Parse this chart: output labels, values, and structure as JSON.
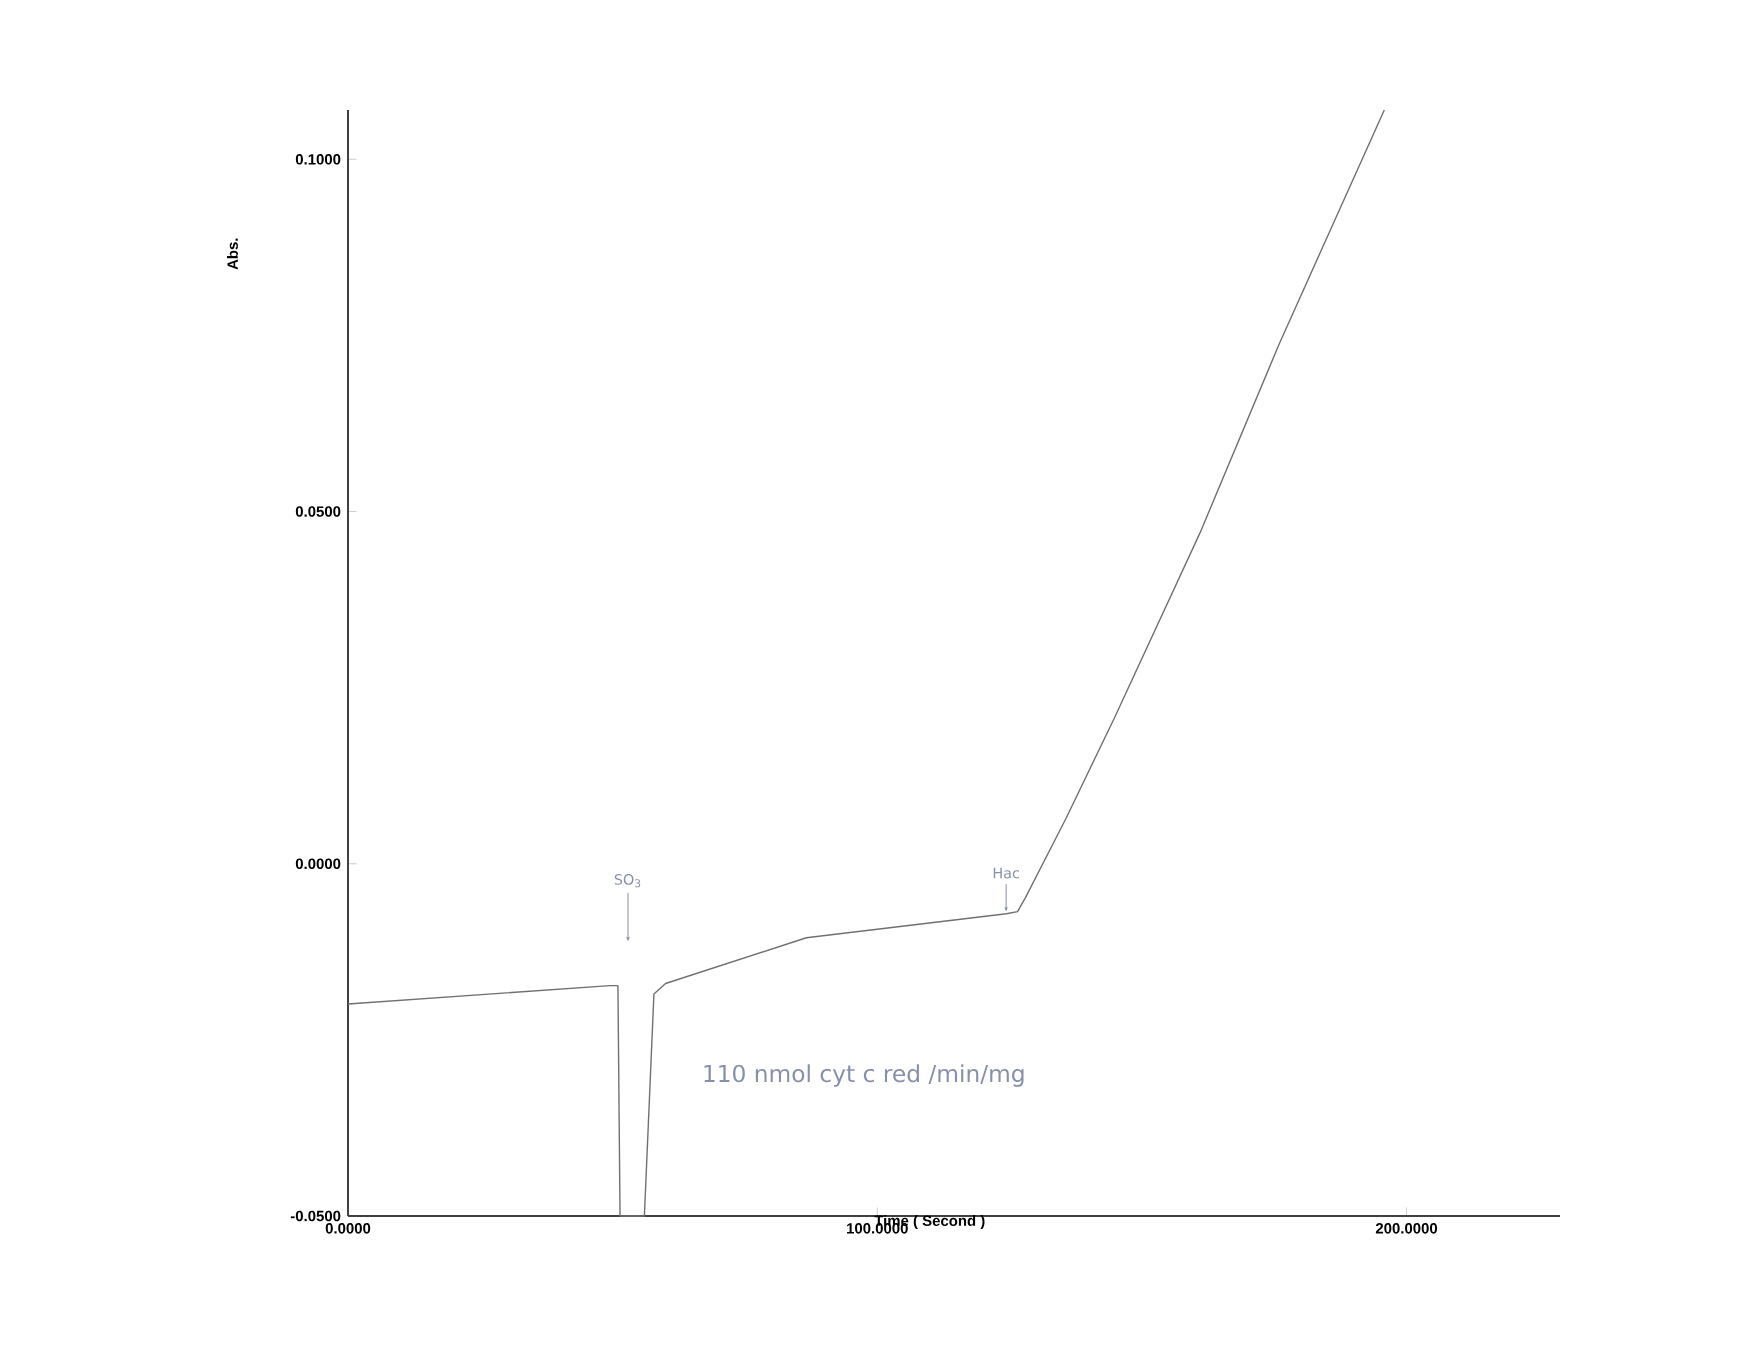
{
  "chart_data": {
    "type": "line",
    "xlabel": "Time ( Second )",
    "ylabel": "Abs.",
    "x": [
      0,
      49.5,
      51,
      51.4,
      56,
      57.8,
      60,
      86.6,
      124.4,
      126.5,
      128,
      135.7,
      144.8,
      161,
      176,
      195.8
    ],
    "series": [
      {
        "color": "#707070",
        "values": [
          -0.0199,
          -0.0173,
          -0.0173,
          -0.05,
          -0.05,
          -0.0185,
          -0.017,
          -0.0105,
          -0.0071,
          -0.0068,
          -0.0048,
          0.0065,
          0.0207,
          0.047,
          0.0739,
          0.107
        ]
      }
    ],
    "xlim": [
      0,
      229
    ],
    "ylim": [
      -0.05,
      0.107
    ],
    "xticks": [
      {
        "value": 0,
        "label": "0.0000"
      },
      {
        "value": 100,
        "label": "100.0000"
      },
      {
        "value": 200,
        "label": "200.0000"
      }
    ],
    "yticks": [
      {
        "value": -0.05,
        "label": "-0.0500"
      },
      {
        "value": 0,
        "label": "0.0000"
      },
      {
        "value": 0.05,
        "label": "0.0500"
      },
      {
        "value": 0.1,
        "label": "0.1000"
      }
    ],
    "annotations": [
      "SO$_{3}$",
      "Hac",
      "110 nmol cyt c red /min/mg"
    ],
    "grid": false,
    "marker": "none",
    "line_style": "solid"
  }
}
